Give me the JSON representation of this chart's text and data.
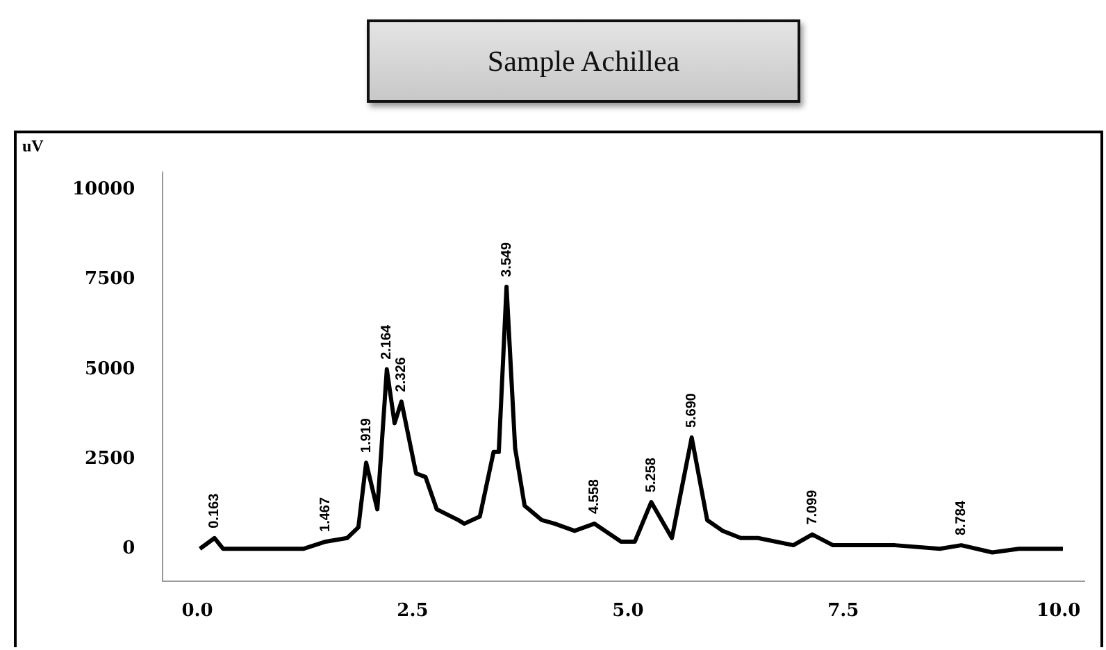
{
  "chart_data": {
    "type": "line",
    "title": "Sample Achillea",
    "ylabel": "uV",
    "x": [
      0.03,
      0.2,
      0.3,
      0.72,
      1.23,
      1.49,
      1.74,
      1.87,
      1.96,
      2.09,
      2.2,
      2.29,
      2.37,
      2.54,
      2.65,
      2.78,
      3.03,
      3.1,
      3.28,
      3.44,
      3.5,
      3.59,
      3.69,
      3.8,
      4.0,
      4.15,
      4.38,
      4.61,
      4.92,
      5.08,
      5.27,
      5.51,
      5.74,
      5.92,
      6.1,
      6.31,
      6.51,
      6.92,
      7.14,
      7.38,
      8.1,
      8.62,
      8.87,
      9.23,
      9.54,
      10.05
    ],
    "series": [
      {
        "color": "#000000",
        "values": [
          0,
          300,
          0,
          0,
          0,
          200,
          300,
          600,
          2400,
          1100,
          5000,
          3500,
          4100,
          2100,
          2000,
          1100,
          800,
          700,
          900,
          2700,
          2700,
          7300,
          2800,
          1200,
          800,
          700,
          500,
          700,
          200,
          200,
          1300,
          300,
          3100,
          800,
          500,
          300,
          300,
          100,
          400,
          100,
          100,
          0,
          100,
          -100,
          0,
          0
        ]
      }
    ],
    "xlim": [
      -0.4,
      10.3
    ],
    "ylim": [
      -900,
      10500
    ],
    "xticks": [
      {
        "value": 0,
        "label": "0.0"
      },
      {
        "value": 2.5,
        "label": "2.5"
      },
      {
        "value": 5,
        "label": "5.0"
      },
      {
        "value": 7.5,
        "label": "7.5"
      },
      {
        "value": 10,
        "label": "10.0"
      }
    ],
    "yticks": [
      0,
      2500,
      5000,
      7500,
      10000
    ],
    "grid": false,
    "legend": false,
    "marker": "none",
    "line_style": "solid",
    "annotations": [
      {
        "text": "0.163",
        "x": 0.2,
        "y": 300
      },
      {
        "text": "1.467",
        "x": 1.49,
        "y": 200
      },
      {
        "text": "1.919",
        "x": 1.96,
        "y": 2400
      },
      {
        "text": "2.164",
        "x": 2.2,
        "y": 5000
      },
      {
        "text": "2.326",
        "x": 2.37,
        "y": 4100
      },
      {
        "text": "3.549",
        "x": 3.59,
        "y": 7300
      },
      {
        "text": "4.558",
        "x": 4.61,
        "y": 700
      },
      {
        "text": "5.258",
        "x": 5.27,
        "y": 1300
      },
      {
        "text": "5.690",
        "x": 5.74,
        "y": 3100
      },
      {
        "text": "7.099",
        "x": 7.14,
        "y": 400
      },
      {
        "text": "8.784",
        "x": 8.87,
        "y": 100
      }
    ]
  }
}
